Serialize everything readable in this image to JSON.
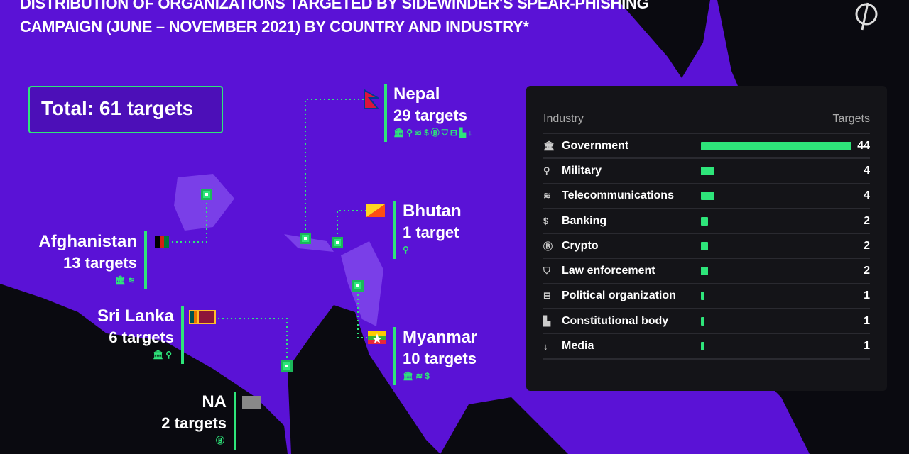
{
  "title": {
    "line1": "Distribution of organizations targeted by SideWinder's spear-phishing",
    "line2": "campaign (June – November 2021) by country and industry*"
  },
  "total": "Total: 61 targets",
  "colors": {
    "land": "#5a12d6",
    "sea": "#0a0a10",
    "accent": "#2ee57a",
    "panel": "#141418"
  },
  "countries": [
    {
      "name": "Nepal",
      "targets": "29 targets",
      "icons": [
        "government-icon",
        "military-icon",
        "wifi-icon",
        "dollar-icon",
        "crypto-icon",
        "shield-icon",
        "political-icon",
        "constitutional-icon",
        "media-icon"
      ]
    },
    {
      "name": "Bhutan",
      "targets": "1 target",
      "icons": [
        "military-icon"
      ]
    },
    {
      "name": "Afghanistan",
      "targets": "13 targets",
      "icons": [
        "government-icon",
        "wifi-icon"
      ]
    },
    {
      "name": "Sri Lanka",
      "targets": "6 targets",
      "icons": [
        "government-icon",
        "military-icon"
      ]
    },
    {
      "name": "Myanmar",
      "targets": "10 targets",
      "icons": [
        "government-icon",
        "wifi-icon",
        "dollar-icon"
      ]
    },
    {
      "name": "NA",
      "targets": "2 targets",
      "icons": [
        "crypto-icon"
      ]
    }
  ],
  "table": {
    "headers": [
      "Industry",
      "Targets"
    ],
    "max": 44,
    "rows": [
      {
        "icon": "government-icon",
        "glyph": "🏛",
        "label": "Government",
        "value": 44
      },
      {
        "icon": "military-icon",
        "glyph": "⚲",
        "label": "Military",
        "value": 4
      },
      {
        "icon": "wifi-icon",
        "glyph": "≋",
        "label": "Telecommunications",
        "value": 4
      },
      {
        "icon": "dollar-icon",
        "glyph": "$",
        "label": "Banking",
        "value": 2
      },
      {
        "icon": "crypto-icon",
        "glyph": "Ⓑ",
        "label": "Crypto",
        "value": 2
      },
      {
        "icon": "shield-icon",
        "glyph": "⛉",
        "label": "Law enforcement",
        "value": 2
      },
      {
        "icon": "political-icon",
        "glyph": "⊟",
        "label": "Political organization",
        "value": 1
      },
      {
        "icon": "constitutional-icon",
        "glyph": "▙",
        "label": "Constitutional body",
        "value": 1
      },
      {
        "icon": "media-icon",
        "glyph": "↓",
        "label": "Media",
        "value": 1
      }
    ]
  }
}
